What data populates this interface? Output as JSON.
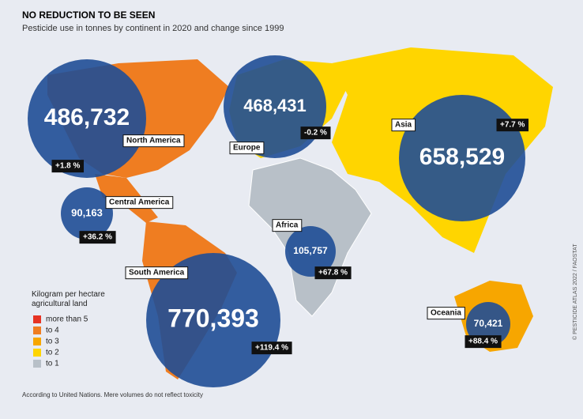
{
  "header": {
    "title": "NO REDUCTION TO BE SEEN",
    "subtitle": "Pesticide use in tonnes by continent in 2020 and change since 1999"
  },
  "regions": [
    {
      "name": "North America",
      "value": "486,732",
      "change": "+1.8 %"
    },
    {
      "name": "Europe",
      "value": "468,431",
      "change": "-0.2 %"
    },
    {
      "name": "Asia",
      "value": "658,529",
      "change": "+7.7 %"
    },
    {
      "name": "Central America",
      "value": "90,163",
      "change": "+36.2 %"
    },
    {
      "name": "Africa",
      "value": "105,757",
      "change": "+67.8 %"
    },
    {
      "name": "South America",
      "value": "770,393",
      "change": "+119.4 %"
    },
    {
      "name": "Oceania",
      "value": "70,421",
      "change": "+88.4 %"
    }
  ],
  "legend": {
    "title": "Kilogram per hectare agricultural land",
    "items": [
      {
        "label": "more than 5",
        "color": "#e63323"
      },
      {
        "label": "to 4",
        "color": "#ef7d21"
      },
      {
        "label": "to 3",
        "color": "#f7a600"
      },
      {
        "label": "to 2",
        "color": "#ffd500"
      },
      {
        "label": "to 1",
        "color": "#b8c0c8"
      }
    ]
  },
  "footer": {
    "note": "According to United Nations. Mere volumes do not reflect toxicity",
    "credit": "© PESTICIDE ATLAS 2022 / FAOSTAT"
  }
}
